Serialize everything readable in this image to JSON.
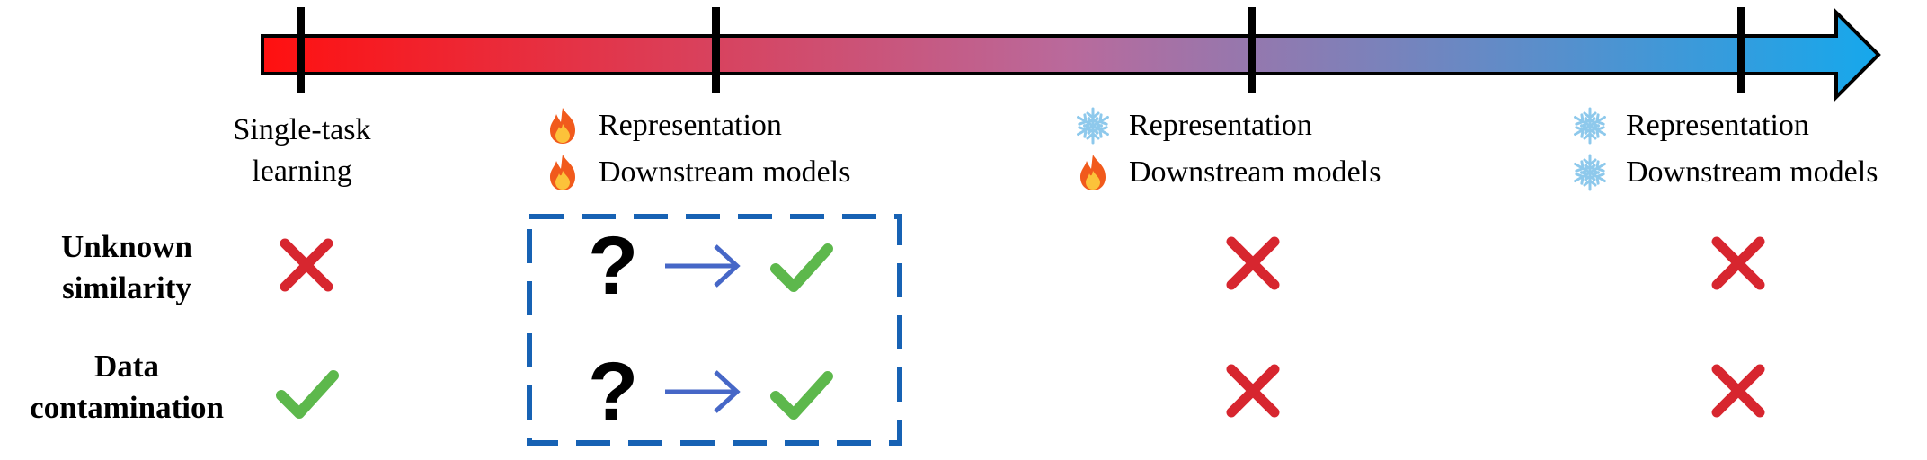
{
  "stages": [
    {
      "label_lines": [
        "Single-task",
        "learning"
      ]
    },
    {
      "rows": [
        {
          "icon": "fire-icon",
          "text": "Representation"
        },
        {
          "icon": "fire-icon",
          "text": "Downstream models"
        }
      ]
    },
    {
      "rows": [
        {
          "icon": "snowflake-icon",
          "text": "Representation"
        },
        {
          "icon": "fire-icon",
          "text": "Downstream models"
        }
      ]
    },
    {
      "rows": [
        {
          "icon": "snowflake-icon",
          "text": "Representation"
        },
        {
          "icon": "snowflake-icon",
          "text": "Downstream models"
        }
      ]
    }
  ],
  "criteria": [
    {
      "lines": [
        "Unknown",
        "similarity"
      ],
      "marks": [
        "cross",
        "question-to-check",
        "cross",
        "cross"
      ]
    },
    {
      "lines": [
        "Data",
        "contamination"
      ],
      "marks": [
        "check",
        "question-to-check",
        "cross",
        "cross"
      ]
    }
  ],
  "question_mark": "?",
  "colors": {
    "arrow_start": "#ff1010",
    "arrow_end": "#16a8ec",
    "cross": "#d7262f",
    "check": "#5db84c",
    "arrow_blue": "#4667c7",
    "dashed_box": "#1762b4",
    "flame_outer": "#f15a1c",
    "flame_inner": "#fcc23a",
    "snowflake": "#8ec9ec"
  }
}
